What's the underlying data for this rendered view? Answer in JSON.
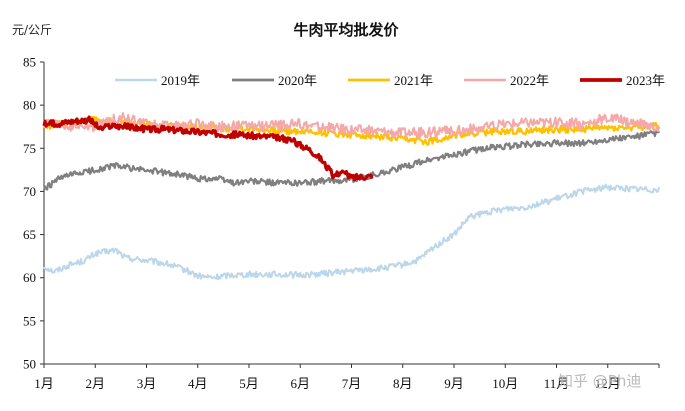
{
  "chart_data": {
    "type": "line",
    "title": "牛肉平均批发价",
    "unit_label": "元/公斤",
    "ylim": [
      50,
      85
    ],
    "y_ticks": [
      50,
      55,
      60,
      65,
      70,
      75,
      80,
      85
    ],
    "x_categories": [
      "1月",
      "2月",
      "3月",
      "4月",
      "5月",
      "6月",
      "7月",
      "8月",
      "9月",
      "10月",
      "11月",
      "12月"
    ],
    "x_domain": [
      1,
      13
    ],
    "legend_position": "top",
    "series": [
      {
        "name": "2019年",
        "color": "#bcd6ea",
        "width": 2,
        "noise": 0.35,
        "points": [
          [
            1,
            61.3
          ],
          [
            1.2,
            60.7
          ],
          [
            1.5,
            61.5
          ],
          [
            1.8,
            62.0
          ],
          [
            2.0,
            62.8
          ],
          [
            2.4,
            63.2
          ],
          [
            2.6,
            62.3
          ],
          [
            3.0,
            62.0
          ],
          [
            3.4,
            61.6
          ],
          [
            3.8,
            60.8
          ],
          [
            4.0,
            60.2
          ],
          [
            4.3,
            60.0
          ],
          [
            4.6,
            60.3
          ],
          [
            5.0,
            60.4
          ],
          [
            5.5,
            60.4
          ],
          [
            6.0,
            60.3
          ],
          [
            6.5,
            60.5
          ],
          [
            7.0,
            60.8
          ],
          [
            7.5,
            61.0
          ],
          [
            8.0,
            61.5
          ],
          [
            8.3,
            62.0
          ],
          [
            8.6,
            63.5
          ],
          [
            9.0,
            65.0
          ],
          [
            9.3,
            67.0
          ],
          [
            9.6,
            67.5
          ],
          [
            10.0,
            68.0
          ],
          [
            10.4,
            68.2
          ],
          [
            10.8,
            68.8
          ],
          [
            11.2,
            69.5
          ],
          [
            11.5,
            70.0
          ],
          [
            12.0,
            70.5
          ],
          [
            12.5,
            70.3
          ],
          [
            13.0,
            70.2
          ]
        ]
      },
      {
        "name": "2020年",
        "color": "#7f7f7f",
        "width": 2.2,
        "noise": 0.35,
        "points": [
          [
            1,
            70.2
          ],
          [
            1.3,
            71.5
          ],
          [
            1.6,
            72.0
          ],
          [
            2.0,
            72.5
          ],
          [
            2.4,
            73.0
          ],
          [
            2.8,
            72.6
          ],
          [
            3.2,
            72.3
          ],
          [
            3.6,
            72.0
          ],
          [
            4.0,
            71.5
          ],
          [
            4.4,
            71.5
          ],
          [
            4.7,
            71.0
          ],
          [
            5.0,
            71.2
          ],
          [
            5.5,
            71.0
          ],
          [
            6.0,
            71.0
          ],
          [
            6.5,
            71.2
          ],
          [
            7.0,
            71.4
          ],
          [
            7.5,
            72.0
          ],
          [
            8.0,
            72.8
          ],
          [
            8.4,
            73.5
          ],
          [
            8.8,
            74.0
          ],
          [
            9.2,
            74.5
          ],
          [
            9.6,
            75.0
          ],
          [
            10.0,
            75.2
          ],
          [
            10.5,
            75.5
          ],
          [
            11.0,
            75.6
          ],
          [
            11.5,
            75.6
          ],
          [
            12.0,
            76.0
          ],
          [
            12.5,
            76.3
          ],
          [
            13.0,
            76.8
          ]
        ]
      },
      {
        "name": "2021年",
        "color": "#ffc000",
        "width": 2.2,
        "noise": 0.4,
        "points": [
          [
            1,
            77.5
          ],
          [
            1.5,
            78.0
          ],
          [
            2.0,
            78.3
          ],
          [
            2.5,
            78.0
          ],
          [
            3.0,
            77.8
          ],
          [
            3.5,
            77.6
          ],
          [
            4.0,
            77.5
          ],
          [
            4.5,
            77.3
          ],
          [
            5.0,
            77.3
          ],
          [
            5.5,
            77.0
          ],
          [
            6.0,
            77.0
          ],
          [
            6.5,
            76.8
          ],
          [
            7.0,
            76.6
          ],
          [
            7.5,
            76.4
          ],
          [
            8.0,
            76.0
          ],
          [
            8.5,
            75.8
          ],
          [
            9.0,
            76.5
          ],
          [
            9.5,
            76.8
          ],
          [
            10.0,
            77.0
          ],
          [
            10.5,
            77.0
          ],
          [
            11.0,
            77.2
          ],
          [
            11.5,
            77.2
          ],
          [
            12.0,
            77.4
          ],
          [
            12.5,
            77.4
          ],
          [
            13.0,
            77.6
          ]
        ]
      },
      {
        "name": "2022年",
        "color": "#f4a8a8",
        "width": 2,
        "noise": 0.6,
        "points": [
          [
            1,
            77.8
          ],
          [
            1.5,
            77.5
          ],
          [
            2.0,
            77.5
          ],
          [
            2.5,
            78.6
          ],
          [
            3.0,
            77.8
          ],
          [
            3.5,
            77.5
          ],
          [
            4.0,
            77.8
          ],
          [
            4.5,
            77.5
          ],
          [
            5.0,
            77.6
          ],
          [
            5.5,
            77.6
          ],
          [
            6.0,
            77.8
          ],
          [
            6.5,
            77.4
          ],
          [
            7.0,
            77.2
          ],
          [
            7.5,
            77.0
          ],
          [
            8.0,
            76.8
          ],
          [
            8.5,
            76.8
          ],
          [
            9.0,
            77.0
          ],
          [
            9.5,
            77.3
          ],
          [
            10.0,
            77.8
          ],
          [
            10.5,
            78.0
          ],
          [
            11.0,
            78.0
          ],
          [
            11.5,
            77.8
          ],
          [
            12.0,
            78.5
          ],
          [
            12.5,
            78.0
          ],
          [
            13.0,
            77.4
          ]
        ]
      },
      {
        "name": "2023年",
        "color": "#c00000",
        "width": 3.2,
        "noise": 0.35,
        "points": [
          [
            1,
            77.8
          ],
          [
            1.3,
            77.9
          ],
          [
            1.6,
            78.2
          ],
          [
            1.9,
            78.3
          ],
          [
            2.1,
            77.2
          ],
          [
            2.3,
            77.6
          ],
          [
            2.6,
            77.5
          ],
          [
            3.0,
            77.2
          ],
          [
            3.4,
            77.2
          ],
          [
            3.8,
            77.0
          ],
          [
            4.2,
            76.8
          ],
          [
            4.6,
            76.6
          ],
          [
            5.0,
            76.5
          ],
          [
            5.4,
            76.3
          ],
          [
            5.8,
            76.0
          ],
          [
            6.0,
            75.4
          ],
          [
            6.2,
            74.8
          ],
          [
            6.4,
            73.8
          ],
          [
            6.55,
            72.6
          ],
          [
            6.65,
            71.8
          ],
          [
            6.8,
            72.3
          ],
          [
            7.0,
            71.6
          ],
          [
            7.2,
            71.7
          ],
          [
            7.4,
            71.8
          ]
        ]
      }
    ]
  },
  "watermark": "知乎 @Ph迪"
}
